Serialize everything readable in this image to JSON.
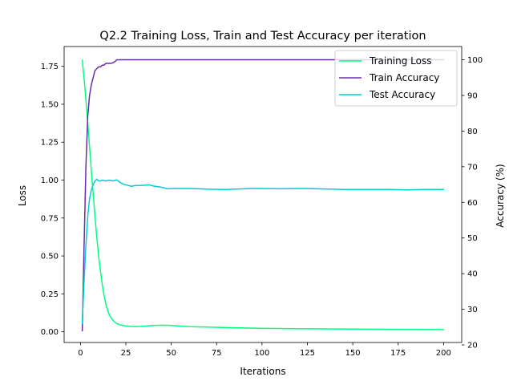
{
  "chart_data": {
    "type": "line",
    "title": "Q2.2 Training Loss, Train and Test Accuracy per iteration",
    "xlabel": "Iterations",
    "ylabel": "Loss",
    "y2label": "Accuracy (%)",
    "xlim": [
      -9,
      210
    ],
    "ylim": [
      -0.0705,
      1.8805
    ],
    "y2lim": [
      20.68,
      103.72
    ],
    "xticks": [
      0,
      25,
      50,
      75,
      100,
      125,
      150,
      175,
      200
    ],
    "yticks": [
      0.0,
      0.25,
      0.5,
      0.75,
      1.0,
      1.25,
      1.5,
      1.75
    ],
    "y2ticks": [
      20,
      30,
      40,
      50,
      60,
      70,
      80,
      90,
      100
    ],
    "legend_position": "top-right",
    "series": [
      {
        "name": "Training Loss",
        "axis": "left",
        "color": "#00ff7f",
        "x": [
          1,
          2,
          3,
          4,
          5,
          6,
          7,
          8,
          9,
          10,
          11,
          12,
          13,
          14,
          15,
          16,
          17,
          18,
          19,
          20,
          22,
          24,
          26,
          28,
          30,
          33,
          36,
          40,
          45,
          50,
          55,
          60,
          70,
          80,
          100,
          125,
          150,
          175,
          200
        ],
        "y": [
          1.79,
          1.67,
          1.53,
          1.38,
          1.22,
          1.06,
          0.91,
          0.76,
          0.62,
          0.5,
          0.4,
          0.31,
          0.24,
          0.18,
          0.14,
          0.11,
          0.09,
          0.075,
          0.063,
          0.054,
          0.045,
          0.04,
          0.037,
          0.035,
          0.034,
          0.035,
          0.038,
          0.042,
          0.044,
          0.042,
          0.038,
          0.034,
          0.031,
          0.028,
          0.023,
          0.02,
          0.018,
          0.016,
          0.015
        ]
      },
      {
        "name": "Train Accuracy",
        "axis": "right",
        "color": "#6a2ba8",
        "x": [
          1,
          2,
          3,
          4,
          5,
          6,
          7,
          8,
          9,
          10,
          11,
          12,
          13,
          14,
          15,
          16,
          17,
          18,
          19,
          20,
          25,
          50,
          100,
          150,
          200
        ],
        "y": [
          24,
          48,
          70,
          84,
          90,
          93,
          95,
          97,
          97.5,
          98,
          98,
          98.5,
          98.5,
          99,
          99,
          99,
          99,
          99.2,
          99.5,
          100,
          100,
          100,
          100,
          100,
          100
        ]
      },
      {
        "name": "Test Accuracy",
        "axis": "right",
        "color": "#00ced1",
        "x": [
          1,
          2,
          3,
          4,
          5,
          6,
          7,
          8,
          9,
          10,
          11,
          12,
          14,
          16,
          18,
          20,
          22,
          24,
          26,
          28,
          30,
          35,
          38,
          40,
          44,
          48,
          52,
          60,
          70,
          80,
          90,
          95,
          100,
          110,
          120,
          125,
          130,
          140,
          145,
          150,
          160,
          170,
          180,
          190,
          200
        ],
        "y": [
          26,
          38,
          48,
          56,
          61,
          63.5,
          65,
          66,
          66.5,
          66,
          66,
          66.2,
          66,
          66.2,
          66,
          66.3,
          65.5,
          65,
          64.8,
          64.5,
          64.7,
          64.8,
          64.9,
          64.6,
          64.3,
          63.8,
          63.9,
          63.9,
          63.7,
          63.6,
          63.8,
          63.9,
          63.9,
          63.8,
          63.9,
          63.9,
          63.8,
          63.7,
          63.6,
          63.6,
          63.6,
          63.6,
          63.5,
          63.6,
          63.6
        ]
      }
    ]
  }
}
